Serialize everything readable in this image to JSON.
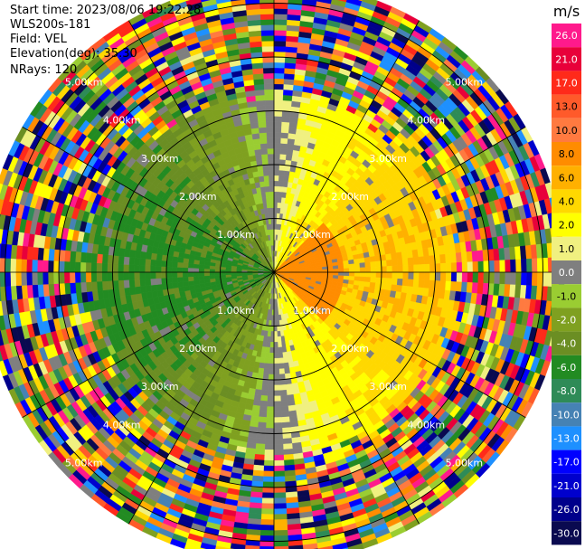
{
  "header": {
    "start_time": "Start time: 2023/08/06 19:22:28",
    "instrument": "WLS200s-181",
    "field": "Field: VEL",
    "elevation": "Elevation(deg): 35.30",
    "nrays": "NRays: 120"
  },
  "chart_data": {
    "type": "heatmap",
    "projection": "polar-ppi",
    "field": "VEL",
    "units": "m/s",
    "range_rings_km": [
      1,
      2,
      3,
      4,
      5
    ],
    "range_labels": [
      "1.00km",
      "2.00km",
      "3.00km",
      "4.00km",
      "5.00km"
    ],
    "max_range_km": 5.4,
    "nrays": 120,
    "colorbar": {
      "title": "m/s",
      "tick_labels": [
        "26.0",
        "21.0",
        "17.0",
        "13.0",
        "10.0",
        "8.0",
        "6.0",
        "4.0",
        "2.0",
        "1.0",
        "0.0",
        "-1.0",
        "-2.0",
        "-4.0",
        "-6.0",
        "-8.0",
        "-10.0",
        "-13.0",
        "-17.0",
        "-21.0",
        "-26.0",
        "-30.0"
      ],
      "colors": [
        "#ff1a8c",
        "#e8003a",
        "#ff2a1a",
        "#ff5a2a",
        "#ff7a40",
        "#ff8c00",
        "#ffb000",
        "#ffd800",
        "#ffff00",
        "#f0f080",
        "#7f7f7f",
        "#9acd32",
        "#7fa020",
        "#6b8e23",
        "#228b22",
        "#2e8b57",
        "#4682b4",
        "#1e90ff",
        "#0000ff",
        "#0000cd",
        "#00008b",
        "#0a0a50"
      ]
    },
    "pattern": "Near-range velocities: positive (yellow/orange, 2 to 8 m/s) on the east side, negative (green, -1 to -6 m/s) on the west side, near-zero (gray) on the north-south axis; noisy multicolored gates beyond ~3.2 km."
  }
}
